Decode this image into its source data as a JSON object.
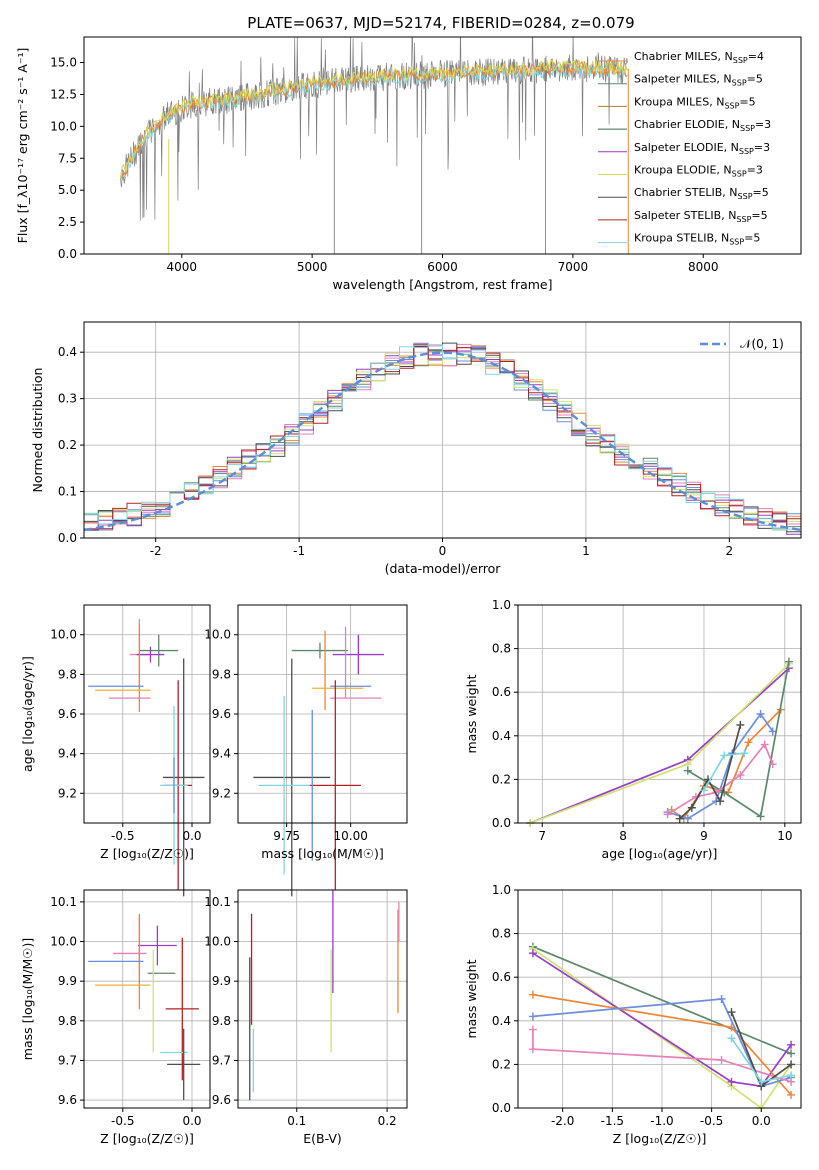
{
  "figure": {
    "title": "PLATE=0637, MJD=52174, FIBERID=0284, z=0.079",
    "colors": [
      "#ef8636",
      "#5b8a6b",
      "#3b75af",
      "#e87fba",
      "#f2b130",
      "#7f7f7f",
      "#9a3bc9",
      "#cfe372",
      "#4e4e4e",
      "#b22222",
      "#7fd6de",
      "#6b8ee0",
      "#d6d658"
    ]
  },
  "chart_data": [
    {
      "id": "spectrum",
      "type": "line",
      "xlabel": "wavelength [Angstrom, rest frame]",
      "ylabel": "Flux [f_λ10⁻¹⁷ erg cm⁻² s⁻¹ A⁻¹]",
      "xlim": [
        3250,
        8750
      ],
      "ylim": [
        0,
        17
      ],
      "xticks": [
        "4000",
        "5000",
        "6000",
        "7000",
        "8000"
      ],
      "yticks": [
        "0.0",
        "2.5",
        "5.0",
        "7.5",
        "10.0",
        "12.5",
        "15.0"
      ],
      "grid": false,
      "legend_position": "upper right",
      "continuum_x": [
        3530,
        3700,
        3900,
        4100,
        4300,
        4600,
        5000,
        5400,
        5800,
        6200,
        6600,
        7000,
        7420
      ],
      "continuum_y": [
        6.0,
        9.0,
        11.0,
        11.8,
        12.0,
        12.5,
        13.3,
        13.8,
        14.0,
        14.2,
        14.4,
        14.6,
        14.4
      ],
      "series": [
        {
          "name": "Chabrier MILES, N_SSP=4",
          "color": "#ef8636"
        },
        {
          "name": "Salpeter MILES, N_SSP=5",
          "color": "#5b8a6b"
        },
        {
          "name": "Kroupa MILES, N_SSP=5",
          "color": "#b87c2d"
        },
        {
          "name": "Chabrier ELODIE, N_SSP=3",
          "color": "#3e6e4e"
        },
        {
          "name": "Salpeter ELODIE, N_SSP=3",
          "color": "#9a3bc9"
        },
        {
          "name": "Kroupa ELODIE, N_SSP=3",
          "color": "#d6d658"
        },
        {
          "name": "Chabrier STELIB, N_SSP=5",
          "color": "#4e4e4e"
        },
        {
          "name": "Salpeter STELIB, N_SSP=5",
          "color": "#b22222"
        },
        {
          "name": "Kroupa STELIB, N_SSP=5",
          "color": "#7fd6de"
        }
      ],
      "data_series": {
        "name": "",
        "color": "#7f7f7f"
      }
    },
    {
      "id": "residuals",
      "type": "line",
      "xlabel": "(data-model)/error",
      "ylabel": "Normed distribution",
      "xlim": [
        -2.5,
        2.5
      ],
      "ylim": [
        0,
        0.465
      ],
      "xticks": [
        -2,
        -1,
        0,
        1,
        2
      ],
      "yticks": [
        "0.0",
        "0.1",
        "0.2",
        "0.3",
        "0.4"
      ],
      "grid": true,
      "legend_position": "upper right",
      "gaussian_label": "𝒩(0, 1)",
      "bins": 50,
      "base_hist": [
        0.035,
        0.04,
        0.045,
        0.05,
        0.06,
        0.07,
        0.085,
        0.1,
        0.115,
        0.13,
        0.15,
        0.165,
        0.18,
        0.2,
        0.22,
        0.245,
        0.27,
        0.295,
        0.32,
        0.34,
        0.36,
        0.375,
        0.39,
        0.395,
        0.395,
        0.395,
        0.395,
        0.39,
        0.375,
        0.36,
        0.34,
        0.32,
        0.295,
        0.27,
        0.245,
        0.22,
        0.2,
        0.18,
        0.165,
        0.15,
        0.13,
        0.115,
        0.1,
        0.085,
        0.07,
        0.06,
        0.05,
        0.045,
        0.04,
        0.03
      ],
      "hist_colors": [
        "#ef8636",
        "#5b8a6b",
        "#6b8ee0",
        "#e87fba",
        "#9a3bc9",
        "#cfe372",
        "#4e4e4e",
        "#b22222",
        "#7fd6de"
      ]
    },
    {
      "id": "age-vs-Z",
      "type": "scatter",
      "xlabel": "Z [log₁₀(Z/Z☉)]",
      "ylabel": "age  [log₁₀(age/yr)]",
      "xlim": [
        -0.78,
        0.13
      ],
      "ylim": [
        9.05,
        10.15
      ],
      "xticks": [
        "-0.5",
        "0.0"
      ],
      "xtick_values": [
        -0.5,
        0.0
      ],
      "yticks": [
        "9.2",
        "9.4",
        "9.6",
        "9.8",
        "10.0"
      ],
      "ytick_values": [
        9.2,
        9.4,
        9.6,
        9.8,
        10.0
      ],
      "grid": true,
      "points": [
        {
          "x": -0.38,
          "y": 9.9,
          "xerr": 0.07,
          "yerr": 0.18,
          "color": "#e87fba"
        },
        {
          "x": -0.24,
          "y": 9.92,
          "xerr": 0.14,
          "yerr": 0.08,
          "color": "#5b8a6b"
        },
        {
          "x": -0.3,
          "y": 9.9,
          "xerr": 0.1,
          "yerr": 0.04,
          "color": "#9a3bc9"
        },
        {
          "x": -0.38,
          "y": 9.83,
          "xerr": 0.0,
          "yerr": 0.22,
          "color": "#ef8636"
        },
        {
          "x": -0.5,
          "y": 9.72,
          "xerr": 0.2,
          "yerr": 0.0,
          "color": "#f2b130"
        },
        {
          "x": -0.55,
          "y": 9.74,
          "xerr": 0.2,
          "yerr": 0.0,
          "color": "#6b8ee0"
        },
        {
          "x": -0.45,
          "y": 9.68,
          "xerr": 0.15,
          "yerr": 0.0,
          "color": "#e87fba"
        },
        {
          "x": -0.06,
          "y": 9.28,
          "xerr": 0.15,
          "yerr": 0.6,
          "color": "#4e4e4e"
        },
        {
          "x": -0.1,
          "y": 9.24,
          "xerr": 0.1,
          "yerr": 0.53,
          "color": "#b22222"
        },
        {
          "x": -0.13,
          "y": 9.24,
          "xerr": 0.1,
          "yerr": 0.4,
          "color": "#7fd6de"
        },
        {
          "x": -0.13,
          "y": 9.24,
          "xerr": 0.0,
          "yerr": 0.14,
          "color": "#6b8ee0"
        }
      ]
    },
    {
      "id": "age-vs-mass",
      "type": "scatter",
      "xlabel": "mass [log₁₀(M/M☉)]",
      "ylabel": "",
      "xlim": [
        9.56,
        10.22
      ],
      "ylim": [
        9.05,
        10.15
      ],
      "xticks": [
        "9.75",
        "10.00"
      ],
      "xtick_values": [
        9.75,
        10.0
      ],
      "yticks": [
        "9.2",
        "9.4",
        "9.6",
        "9.8",
        "10.0"
      ],
      "ytick_values": [
        9.2,
        9.4,
        9.6,
        9.8,
        10.0
      ],
      "grid": true,
      "points": [
        {
          "x": 9.88,
          "y": 9.92,
          "xerr": 0.11,
          "yerr": 0.04,
          "color": "#5b8a6b"
        },
        {
          "x": 10.03,
          "y": 9.9,
          "xerr": 0.1,
          "yerr": 0.1,
          "color": "#9a3bc9"
        },
        {
          "x": 9.98,
          "y": 9.86,
          "xerr": 0.0,
          "yerr": 0.18,
          "color": "#e87fba"
        },
        {
          "x": 9.9,
          "y": 9.82,
          "xerr": 0.0,
          "yerr": 0.2,
          "color": "#ef8636"
        },
        {
          "x": 9.95,
          "y": 9.73,
          "xerr": 0.1,
          "yerr": 0.0,
          "color": "#f2b130"
        },
        {
          "x": 10.0,
          "y": 9.74,
          "xerr": 0.08,
          "yerr": 0.0,
          "color": "#6b8ee0"
        },
        {
          "x": 10.02,
          "y": 9.68,
          "xerr": 0.1,
          "yerr": 0.0,
          "color": "#e87fba"
        },
        {
          "x": 9.77,
          "y": 9.28,
          "xerr": 0.15,
          "yerr": 0.6,
          "color": "#4e4e4e"
        },
        {
          "x": 9.94,
          "y": 9.24,
          "xerr": 0.1,
          "yerr": 0.53,
          "color": "#b22222"
        },
        {
          "x": 9.74,
          "y": 9.24,
          "xerr": 0.1,
          "yerr": 0.45,
          "color": "#7fd6de"
        },
        {
          "x": 9.85,
          "y": 9.24,
          "xerr": 0.0,
          "yerr": 0.38,
          "color": "#6b8ee0"
        }
      ]
    },
    {
      "id": "weight-vs-age",
      "type": "line",
      "xlabel": "age  [log₁₀(age/yr)]",
      "ylabel": "mass weight",
      "xlim": [
        6.7,
        10.2
      ],
      "ylim": [
        0,
        1
      ],
      "xticks": [
        "7",
        "8",
        "9",
        "10"
      ],
      "xtick_values": [
        7,
        8,
        9,
        10
      ],
      "yticks": [
        "0.0",
        "0.2",
        "0.4",
        "0.6",
        "0.8",
        "1.0"
      ],
      "ytick_values": [
        0,
        0.2,
        0.4,
        0.6,
        0.8,
        1.0
      ],
      "grid": true,
      "series": [
        {
          "color": "#9a3bc9",
          "x": [
            6.85,
            8.8,
            10.05
          ],
          "y": [
            0.0,
            0.29,
            0.71
          ]
        },
        {
          "color": "#cfe372",
          "x": [
            6.85,
            8.8,
            10.05
          ],
          "y": [
            0.0,
            0.27,
            0.73
          ]
        },
        {
          "color": "#ef8636",
          "x": [
            8.6,
            8.75,
            9.0,
            9.3,
            9.55,
            9.95
          ],
          "y": [
            0.06,
            0.02,
            0.17,
            0.14,
            0.37,
            0.52
          ]
        },
        {
          "color": "#6b8ee0",
          "x": [
            8.55,
            8.8,
            9.15,
            9.35,
            9.7,
            9.85
          ],
          "y": [
            0.05,
            0.02,
            0.1,
            0.32,
            0.5,
            0.42
          ]
        },
        {
          "color": "#5b8a6b",
          "x": [
            8.8,
            9.25,
            9.7,
            10.05
          ],
          "y": [
            0.24,
            0.14,
            0.03,
            0.74
          ]
        },
        {
          "color": "#e87fba",
          "x": [
            8.55,
            8.9,
            9.15,
            9.45,
            9.75,
            9.85
          ],
          "y": [
            0.04,
            0.12,
            0.14,
            0.22,
            0.36,
            0.27
          ]
        },
        {
          "color": "#4e4e4e",
          "x": [
            8.7,
            8.85,
            9.05,
            9.2,
            9.45
          ],
          "y": [
            0.02,
            0.07,
            0.2,
            0.1,
            0.45
          ]
        },
        {
          "color": "#7fd6de",
          "x": [
            9.0,
            9.25,
            9.5
          ],
          "y": [
            0.15,
            0.31,
            0.32
          ]
        }
      ]
    },
    {
      "id": "mass-vs-Z",
      "type": "scatter",
      "xlabel": "Z [log₁₀(Z/Z☉)]",
      "ylabel": "mass [log₁₀(M/M☉)]",
      "xlim": [
        -0.78,
        0.13
      ],
      "ylim": [
        9.58,
        10.13
      ],
      "xticks": [
        "-0.5",
        "0.0"
      ],
      "xtick_values": [
        -0.5,
        0.0
      ],
      "yticks": [
        "9.6",
        "9.7",
        "9.8",
        "9.9",
        "10.0",
        "10.1"
      ],
      "ytick_values": [
        9.6,
        9.7,
        9.8,
        9.9,
        10.0,
        10.1
      ],
      "grid": true,
      "points": [
        {
          "x": -0.38,
          "y": 9.97,
          "xerr": 0.0,
          "yerr": 0.09,
          "color": "#e87fba"
        },
        {
          "x": -0.25,
          "y": 9.99,
          "xerr": 0.14,
          "yerr": 0.05,
          "color": "#9a3bc9"
        },
        {
          "x": -0.38,
          "y": 9.95,
          "xerr": 0.0,
          "yerr": 0.12,
          "color": "#ef8636"
        },
        {
          "x": -0.55,
          "y": 9.95,
          "xerr": 0.2,
          "yerr": 0.0,
          "color": "#6b8ee0"
        },
        {
          "x": -0.5,
          "y": 9.89,
          "xerr": 0.2,
          "yerr": 0.0,
          "color": "#f2b130"
        },
        {
          "x": -0.45,
          "y": 9.97,
          "xerr": 0.12,
          "yerr": 0.0,
          "color": "#e87fba"
        },
        {
          "x": -0.22,
          "y": 9.92,
          "xerr": 0.1,
          "yerr": 0.0,
          "color": "#5b8a6b"
        },
        {
          "x": -0.28,
          "y": 9.85,
          "xerr": 0.0,
          "yerr": 0.13,
          "color": "#cfe372"
        },
        {
          "x": -0.07,
          "y": 9.83,
          "xerr": 0.12,
          "yerr": 0.18,
          "color": "#b22222"
        },
        {
          "x": -0.13,
          "y": 9.72,
          "xerr": 0.1,
          "yerr": 0.0,
          "color": "#7fd6de"
        },
        {
          "x": -0.06,
          "y": 9.69,
          "xerr": 0.12,
          "yerr": 0.09,
          "color": "#4e4e4e"
        }
      ]
    },
    {
      "id": "mass-vs-ebv",
      "type": "scatter",
      "xlabel": "E(B-V)",
      "ylabel": "",
      "xlim": [
        0.035,
        0.222
      ],
      "ylim": [
        9.58,
        10.13
      ],
      "xticks": [
        "0.1",
        "0.2"
      ],
      "xtick_values": [
        0.1,
        0.2
      ],
      "yticks": [
        "9.6",
        "9.7",
        "9.8",
        "9.9",
        "10.0",
        "10.1"
      ],
      "ytick_values": [
        9.6,
        9.7,
        9.8,
        9.9,
        10.0,
        10.1
      ],
      "grid": true,
      "points": [
        {
          "x": 0.05,
          "y": 9.93,
          "xerr": 0,
          "yerr": 0.14,
          "color": "#b22222"
        },
        {
          "x": 0.048,
          "y": 9.78,
          "xerr": 0,
          "yerr": 0.18,
          "color": "#4e4e4e"
        },
        {
          "x": 0.052,
          "y": 9.7,
          "xerr": 0,
          "yerr": 0.08,
          "color": "#7fd6de"
        },
        {
          "x": 0.14,
          "y": 10.0,
          "xerr": 0,
          "yerr": 0.13,
          "color": "#9a3bc9"
        },
        {
          "x": 0.138,
          "y": 9.85,
          "xerr": 0,
          "yerr": 0.13,
          "color": "#cfe372"
        },
        {
          "x": 0.212,
          "y": 9.95,
          "xerr": 0,
          "yerr": 0.13,
          "color": "#ef8636"
        },
        {
          "x": 0.213,
          "y": 10.05,
          "xerr": 0,
          "yerr": 0.05,
          "color": "#e87fba"
        }
      ]
    },
    {
      "id": "weight-vs-Z",
      "type": "line",
      "xlabel": "Z [log₁₀(Z/Z☉)]",
      "ylabel": "mass weight",
      "xlim": [
        -2.45,
        0.4
      ],
      "ylim": [
        0,
        1
      ],
      "xticks": [
        "-2.0",
        "-1.5",
        "-1.0",
        "-0.5",
        "0.0"
      ],
      "xtick_values": [
        -2.0,
        -1.5,
        -1.0,
        -0.5,
        0.0
      ],
      "yticks": [
        "0.0",
        "0.2",
        "0.4",
        "0.6",
        "0.8",
        "1.0"
      ],
      "ytick_values": [
        0,
        0.2,
        0.4,
        0.6,
        0.8,
        1.0
      ],
      "grid": true,
      "series": [
        {
          "color": "#5b8a6b",
          "x": [
            -2.3,
            0.3
          ],
          "y": [
            0.74,
            0.25
          ]
        },
        {
          "color": "#cfe372",
          "x": [
            -2.3,
            -0.3,
            0.0,
            0.3
          ],
          "y": [
            0.73,
            0.1,
            0.0,
            0.2
          ]
        },
        {
          "color": "#9a3bc9",
          "x": [
            -2.3,
            -0.3,
            0.0,
            0.3
          ],
          "y": [
            0.71,
            0.12,
            0.1,
            0.29
          ]
        },
        {
          "color": "#ef8636",
          "x": [
            -2.3,
            -0.3,
            0.3
          ],
          "y": [
            0.52,
            0.37,
            0.06
          ]
        },
        {
          "color": "#6b8ee0",
          "x": [
            -2.3,
            -0.4,
            0.0,
            0.3
          ],
          "y": [
            0.42,
            0.5,
            0.1,
            0.14
          ]
        },
        {
          "color": "#e87fba",
          "x": [
            -2.3,
            -2.3,
            -0.4,
            0.3
          ],
          "y": [
            0.36,
            0.27,
            0.22,
            0.12
          ]
        },
        {
          "color": "#4e4e4e",
          "x": [
            -0.3,
            0.0,
            0.3
          ],
          "y": [
            0.44,
            0.1,
            0.2
          ]
        },
        {
          "color": "#7fd6de",
          "x": [
            -0.3,
            0.0,
            0.3
          ],
          "y": [
            0.32,
            0.12,
            0.15
          ]
        }
      ]
    }
  ]
}
